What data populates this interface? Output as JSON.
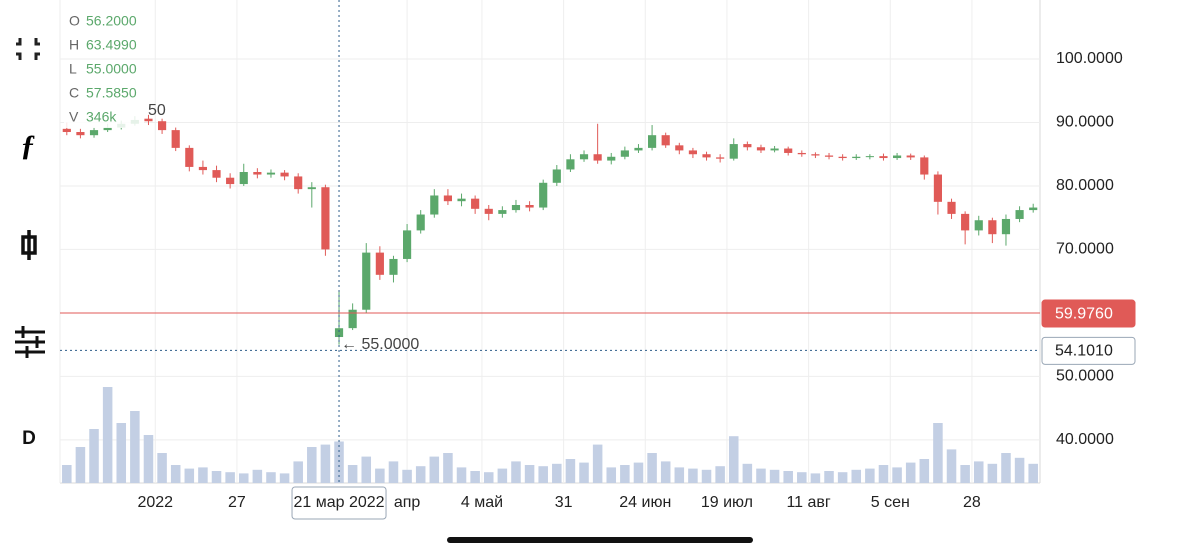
{
  "toolbar": {
    "interval": "D"
  },
  "ohlc_legend": [
    {
      "key": "O",
      "value": "56.2000"
    },
    {
      "key": "H",
      "value": "63.4990"
    },
    {
      "key": "L",
      "value": "55.0000"
    },
    {
      "key": "C",
      "value": "57.5850"
    },
    {
      "key": "V",
      "value": "346k"
    }
  ],
  "chart_data": {
    "type": "candlestick",
    "up_color": "#5ba86b",
    "down_color": "#e05a57",
    "volume_color": "#c3cfe4",
    "xlim": [
      0,
      72
    ],
    "ylim": [
      33.2,
      109.3
    ],
    "vlim": [
      0,
      1000
    ],
    "yticks": [
      {
        "value": 100,
        "label": "100.0000"
      },
      {
        "value": 90,
        "label": "90.0000"
      },
      {
        "value": 80,
        "label": "80.0000"
      },
      {
        "value": 70,
        "label": "70.0000"
      },
      {
        "value": 50,
        "label": "50.0000"
      },
      {
        "value": 40,
        "label": "40.0000"
      }
    ],
    "xticks": [
      {
        "value": 7,
        "label": "2022"
      },
      {
        "value": 13,
        "label": "27"
      },
      {
        "value": 25.5,
        "label": "апр"
      },
      {
        "value": 31,
        "label": "4 май"
      },
      {
        "value": 37,
        "label": "31"
      },
      {
        "value": 43,
        "label": "24 июн"
      },
      {
        "value": 49,
        "label": "19 июл"
      },
      {
        "value": 55,
        "label": "11 авг"
      },
      {
        "value": 61,
        "label": "5 сен"
      },
      {
        "value": 67,
        "label": "28"
      }
    ],
    "crosshair": {
      "x": 20.5,
      "label": "21 мар 2022"
    },
    "price_lines": [
      {
        "value": 59.976,
        "label": "59.9760",
        "color": "#e05a57"
      },
      {
        "value": 54.101,
        "label": "54.1010",
        "color": "#2f5d8a"
      }
    ],
    "low_marker": {
      "x": 20.5,
      "value": 55,
      "label": "← 55.0000"
    },
    "clipped_label": "50",
    "open": [
      89,
      88.5,
      88,
      88.8,
      89.2,
      89.8,
      90.6,
      90.2,
      88.8,
      86,
      83,
      82.5,
      81.3,
      80.3,
      82.2,
      81.8,
      82.1,
      81.5,
      79.5,
      79.8,
      56.2,
      57.6,
      60.5,
      69.5,
      66,
      68.5,
      73,
      75.5,
      78.5,
      77.6,
      78,
      76.4,
      75.6,
      76.2,
      77,
      76.6,
      80.5,
      82.6,
      84.2,
      85,
      84,
      84.6,
      85.6,
      86,
      88,
      86.4,
      85.6,
      85,
      84.5,
      84.3,
      86.6,
      86.1,
      85.6,
      85.9,
      85.2,
      85,
      84.8,
      84.6,
      84.4,
      84.6,
      84.7,
      84.4,
      84.8,
      84.5,
      81.8,
      77.5,
      75.6,
      73,
      74.6,
      72.4,
      74.8,
      76.2
    ],
    "high": [
      90,
      89,
      89.2,
      89.8,
      90.3,
      91,
      91.2,
      90.6,
      89.2,
      86.4,
      84,
      83.2,
      82,
      83.5,
      82.8,
      82.6,
      82.5,
      82,
      80.6,
      80.2,
      63.499,
      61.5,
      71,
      70.5,
      69,
      74,
      76.2,
      79.5,
      79.5,
      78.8,
      78.5,
      77,
      76.8,
      77.8,
      77.6,
      81,
      83.3,
      85,
      85.6,
      89.8,
      85.2,
      86.2,
      86.6,
      89.6,
      88.4,
      86.8,
      86,
      85.4,
      85,
      87.5,
      87,
      86.5,
      86.3,
      86.2,
      85.6,
      85.3,
      85.2,
      85,
      85,
      85,
      85.1,
      85.2,
      85.1,
      84.8,
      82.3,
      78,
      76,
      75.3,
      75,
      75.5,
      76.8,
      77.2
    ],
    "low": [
      88,
      87.5,
      87.6,
      88.5,
      88.9,
      89.5,
      89.6,
      88.2,
      85.5,
      82.3,
      81.8,
      80.6,
      79.6,
      80,
      81.2,
      81.3,
      80.9,
      78.8,
      76.6,
      69,
      55,
      57.3,
      60,
      65.2,
      64.8,
      68,
      72.5,
      75,
      77,
      76.8,
      75.6,
      74.6,
      75,
      75.8,
      76,
      76.2,
      80,
      82.2,
      83.8,
      83.5,
      83.4,
      84.2,
      85.2,
      85.6,
      86,
      85,
      84.4,
      84,
      83.7,
      84,
      85.6,
      85.2,
      85.3,
      84.8,
      84.6,
      84.4,
      84.2,
      84,
      84.1,
      84.2,
      84,
      84.1,
      84.1,
      81,
      75.5,
      74.8,
      70.8,
      72.2,
      71,
      70.6,
      74.3,
      75.8
    ],
    "close": [
      88.5,
      88,
      88.8,
      89.2,
      89.8,
      90.4,
      90.2,
      88.8,
      86,
      83,
      82.5,
      81.3,
      80.3,
      82.2,
      81.8,
      82.1,
      81.5,
      79.5,
      79.8,
      70,
      57.585,
      60.5,
      69.5,
      66,
      68.5,
      73,
      75.5,
      78.5,
      77.6,
      78,
      76.4,
      75.6,
      76.2,
      77,
      76.6,
      80.5,
      82.6,
      84.2,
      85,
      84,
      84.6,
      85.6,
      86,
      88,
      86.4,
      85.6,
      85,
      84.5,
      84.3,
      86.6,
      86.1,
      85.6,
      85.9,
      85.2,
      85,
      84.8,
      84.6,
      84.4,
      84.6,
      84.7,
      84.4,
      84.8,
      84.5,
      81.8,
      77.5,
      75.6,
      73,
      74.6,
      72.4,
      74.8,
      76.2,
      76.6
    ],
    "volume": [
      150,
      300,
      450,
      800,
      500,
      600,
      400,
      250,
      150,
      120,
      130,
      100,
      90,
      80,
      110,
      90,
      80,
      180,
      300,
      320,
      346,
      150,
      220,
      120,
      180,
      110,
      140,
      220,
      250,
      130,
      100,
      90,
      120,
      180,
      150,
      140,
      160,
      200,
      170,
      320,
      130,
      150,
      170,
      250,
      180,
      130,
      120,
      110,
      140,
      390,
      160,
      120,
      110,
      100,
      90,
      80,
      100,
      90,
      110,
      120,
      150,
      130,
      170,
      200,
      500,
      280,
      150,
      180,
      160,
      250,
      210,
      160
    ]
  }
}
